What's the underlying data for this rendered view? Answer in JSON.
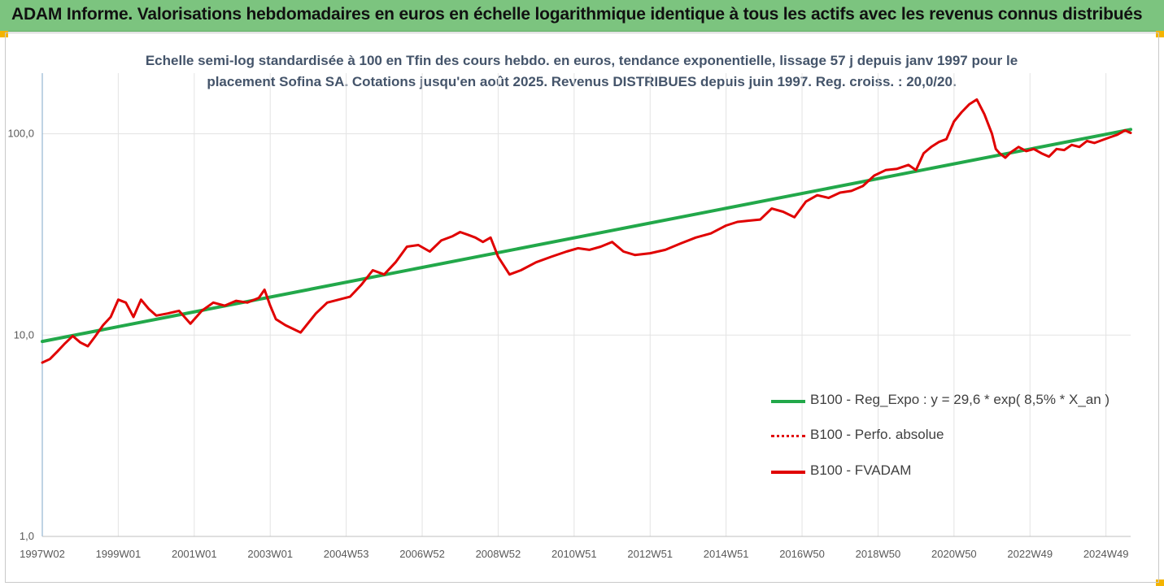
{
  "banner": {
    "title": "ADAM Informe. Valorisations hebdomadaires en euros en échelle logarithmique identique à tous les actifs avec les revenus connus distribués"
  },
  "chart_data": {
    "type": "line",
    "subtitle_line1": "Echelle semi-log standardisée à 100 en Tfin des cours hebdo. en euros, tendance exponentielle, lissage 57 j depuis janv 1997 pour le",
    "subtitle_line2": "placement Sofina SA. Cotations jusqu'en août 2025. Revenus DISTRIBUES depuis juin 1997. Reg. croiss. : 20,0/20.",
    "y_scale": "log",
    "ylim": [
      1,
      200
    ],
    "y_ticks": [
      {
        "value": 1,
        "label": "1,0"
      },
      {
        "value": 10,
        "label": "10,0"
      },
      {
        "value": 100,
        "label": "100,0"
      }
    ],
    "xlim": [
      1997.0,
      2025.65
    ],
    "x_ticks": [
      {
        "x": 1997.0,
        "label": "1997W02"
      },
      {
        "x": 1999.0,
        "label": "1999W01"
      },
      {
        "x": 2001.0,
        "label": "2001W01"
      },
      {
        "x": 2003.0,
        "label": "2003W01"
      },
      {
        "x": 2005.0,
        "label": "2004W53"
      },
      {
        "x": 2007.0,
        "label": "2006W52"
      },
      {
        "x": 2009.0,
        "label": "2008W52"
      },
      {
        "x": 2011.0,
        "label": "2010W51"
      },
      {
        "x": 2013.0,
        "label": "2012W51"
      },
      {
        "x": 2015.0,
        "label": "2014W51"
      },
      {
        "x": 2017.0,
        "label": "2016W50"
      },
      {
        "x": 2019.0,
        "label": "2018W50"
      },
      {
        "x": 2021.0,
        "label": "2020W50"
      },
      {
        "x": 2023.0,
        "label": "2022W49"
      },
      {
        "x": 2025.0,
        "label": "2024W49"
      }
    ],
    "grid": "vertical",
    "legend_position": "right",
    "series": [
      {
        "name": "B100 - Reg_Expo : y = 29,6 * exp( 8,5% *  X_an )",
        "color": "#22a84a",
        "style": "solid",
        "x": [
          1997.0,
          2025.65
        ],
        "y": [
          9.3,
          105
        ]
      },
      {
        "name": "B100 - Perfo. absolue",
        "color": "#e00000",
        "style": "dotted",
        "x": [],
        "y": []
      },
      {
        "name": "B100 - FVADAM",
        "color": "#e00000",
        "style": "solid",
        "x": [
          1997.0,
          1997.2,
          1997.4,
          1997.6,
          1997.8,
          1998.0,
          1998.2,
          1998.4,
          1998.6,
          1998.8,
          1999.0,
          1999.2,
          1999.4,
          1999.6,
          1999.8,
          2000.0,
          2000.3,
          2000.6,
          2000.9,
          2001.2,
          2001.5,
          2001.8,
          2002.1,
          2002.4,
          2002.7,
          2002.85,
          2003.0,
          2003.15,
          2003.4,
          2003.8,
          2004.2,
          2004.5,
          2004.8,
          2005.1,
          2005.4,
          2005.7,
          2006.0,
          2006.3,
          2006.6,
          2006.9,
          2007.2,
          2007.5,
          2007.8,
          2008.0,
          2008.2,
          2008.4,
          2008.6,
          2008.8,
          2009.0,
          2009.3,
          2009.6,
          2010.0,
          2010.4,
          2010.8,
          2011.1,
          2011.4,
          2011.7,
          2012.0,
          2012.3,
          2012.6,
          2013.0,
          2013.4,
          2013.8,
          2014.2,
          2014.6,
          2015.0,
          2015.3,
          2015.6,
          2015.9,
          2016.2,
          2016.5,
          2016.8,
          2017.1,
          2017.4,
          2017.7,
          2018.0,
          2018.3,
          2018.6,
          2018.9,
          2019.2,
          2019.5,
          2019.8,
          2020.0,
          2020.2,
          2020.4,
          2020.6,
          2020.8,
          2021.0,
          2021.2,
          2021.4,
          2021.6,
          2021.8,
          2022.0,
          2022.1,
          2022.2,
          2022.35,
          2022.5,
          2022.7,
          2022.9,
          2023.1,
          2023.3,
          2023.5,
          2023.7,
          2023.9,
          2024.1,
          2024.3,
          2024.5,
          2024.7,
          2024.9,
          2025.1,
          2025.3,
          2025.5,
          2025.65
        ],
        "y": [
          7.3,
          7.6,
          8.3,
          9.1,
          9.9,
          9.2,
          8.8,
          9.9,
          11.2,
          12.3,
          15.0,
          14.5,
          12.3,
          15.0,
          13.5,
          12.5,
          12.8,
          13.2,
          11.4,
          13.2,
          14.5,
          14.0,
          14.8,
          14.5,
          15.3,
          16.8,
          14.0,
          12.0,
          11.2,
          10.3,
          12.8,
          14.5,
          15.0,
          15.5,
          17.8,
          21.0,
          20.0,
          23.0,
          27.5,
          28.0,
          26.0,
          29.5,
          31.0,
          32.5,
          31.5,
          30.5,
          29.0,
          30.5,
          24.5,
          20.0,
          21.0,
          23.0,
          24.5,
          26.0,
          27.0,
          26.5,
          27.5,
          29.0,
          26.0,
          25.0,
          25.5,
          26.5,
          28.5,
          30.5,
          32.0,
          35.0,
          36.5,
          37.0,
          37.5,
          42.5,
          41.0,
          38.5,
          46.0,
          49.5,
          48.0,
          51.0,
          52.0,
          55.0,
          62.0,
          66.0,
          67.0,
          70.0,
          66.0,
          80.0,
          86.0,
          91.0,
          94.0,
          115.0,
          128.0,
          140.0,
          148.0,
          125.0,
          100.0,
          84.0,
          80.0,
          76.0,
          81.0,
          86.0,
          82.0,
          84.0,
          80.0,
          77.0,
          84.0,
          83.0,
          88.0,
          86.0,
          92.0,
          90.0,
          93.0,
          96.0,
          99.0,
          104.0,
          101.0
        ]
      }
    ]
  }
}
